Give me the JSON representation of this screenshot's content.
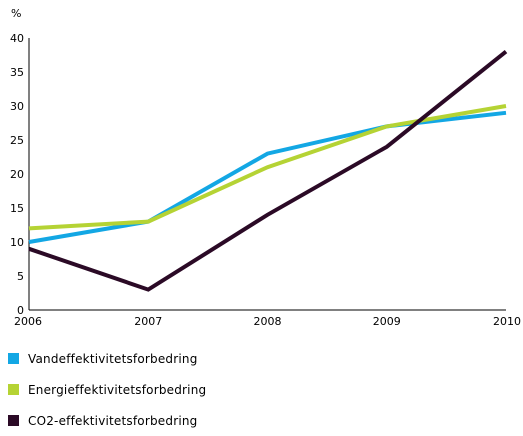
{
  "chart_data": {
    "type": "line",
    "title": "",
    "xlabel": "",
    "ylabel": "%",
    "x": [
      "2006",
      "2007",
      "2008",
      "2009",
      "2010"
    ],
    "ylim": [
      0,
      40
    ],
    "yticks": [
      "0",
      "5",
      "10",
      "15",
      "20",
      "25",
      "30",
      "35",
      "40"
    ],
    "grid": false,
    "legend_position": "bottom",
    "series": [
      {
        "name": "Vandeffektivitetsforbedring",
        "color": "#13a7e4",
        "values": [
          10,
          13,
          23,
          27,
          29
        ]
      },
      {
        "name": "Energieffektivitetsforbedring",
        "color": "#b5d334",
        "values": [
          12,
          13,
          21,
          27,
          30
        ]
      },
      {
        "name": "CO2-effektivitetsforbedring",
        "color": "#2b0a26",
        "values": [
          9,
          3,
          14,
          24,
          38
        ]
      }
    ]
  }
}
